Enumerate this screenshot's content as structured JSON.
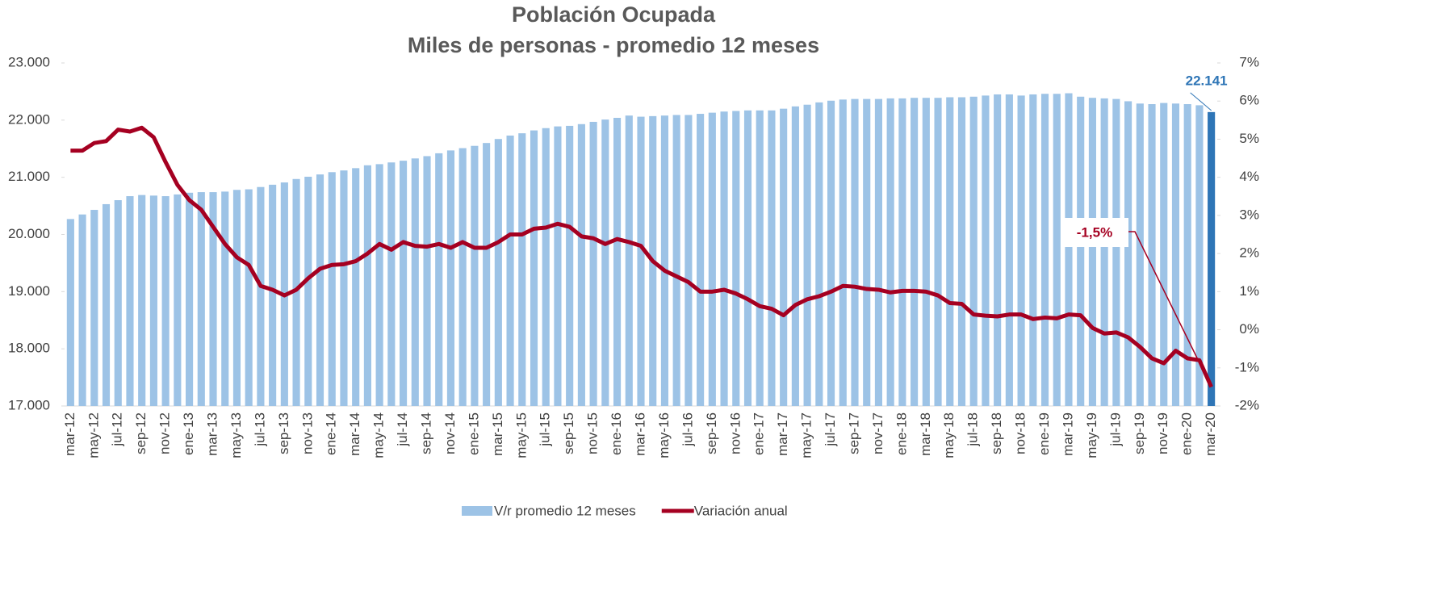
{
  "chart_data": {
    "type": "bar_line",
    "title": "Población Ocupada",
    "subtitle": "Miles de personas - promedio 12 meses",
    "categories": [
      "mar-12",
      null,
      "may-12",
      null,
      "jul-12",
      null,
      "sep-12",
      null,
      "nov-12",
      null,
      "ene-13",
      null,
      "mar-13",
      null,
      "may-13",
      null,
      "jul-13",
      null,
      "sep-13",
      null,
      "nov-13",
      null,
      "ene-14",
      null,
      "mar-14",
      null,
      "may-14",
      null,
      "jul-14",
      null,
      "sep-14",
      null,
      "nov-14",
      null,
      "ene-15",
      null,
      "mar-15",
      null,
      "may-15",
      null,
      "jul-15",
      null,
      "sep-15",
      null,
      "nov-15",
      null,
      "ene-16",
      null,
      "mar-16",
      null,
      "may-16",
      null,
      "jul-16",
      null,
      "sep-16",
      null,
      "nov-16",
      null,
      "ene-17",
      null,
      "mar-17",
      null,
      "may-17",
      null,
      "jul-17",
      null,
      "sep-17",
      null,
      "nov-17",
      null,
      "ene-18",
      null,
      "mar-18",
      null,
      "may-18",
      null,
      "jul-18",
      null,
      "sep-18",
      null,
      "nov-18",
      null,
      "ene-19",
      null,
      "mar-19",
      null,
      "may-19",
      null,
      "jul-19",
      null,
      "sep-19",
      null,
      "nov-19",
      null,
      "ene-20",
      null,
      "mar-20"
    ],
    "series": [
      {
        "name": "V/r promedio 12 meses",
        "type": "bar",
        "color": "#9dc3e6",
        "highlight_color": "#2e75b6",
        "values": [
          20270,
          20350,
          20430,
          20530,
          20600,
          20670,
          20690,
          20680,
          20670,
          20700,
          20730,
          20740,
          20740,
          20750,
          20780,
          20790,
          20830,
          20870,
          20910,
          20970,
          21010,
          21050,
          21090,
          21120,
          21160,
          21210,
          21230,
          21260,
          21290,
          21330,
          21370,
          21420,
          21470,
          21510,
          21550,
          21600,
          21670,
          21730,
          21770,
          21820,
          21860,
          21890,
          21900,
          21930,
          21970,
          22010,
          22040,
          22080,
          22060,
          22070,
          22080,
          22090,
          22090,
          22110,
          22130,
          22150,
          22160,
          22170,
          22170,
          22170,
          22200,
          22240,
          22270,
          22310,
          22340,
          22360,
          22370,
          22370,
          22370,
          22380,
          22380,
          22390,
          22390,
          22390,
          22400,
          22400,
          22410,
          22430,
          22450,
          22450,
          22430,
          22450,
          22460,
          22460,
          22470,
          22410,
          22390,
          22380,
          22370,
          22330,
          22290,
          22280,
          22300,
          22290,
          22280,
          22260,
          22141
        ],
        "value_labels": [
          null,
          null,
          null,
          null,
          null,
          null,
          null,
          null,
          null,
          null,
          null,
          null,
          null,
          null,
          null,
          null,
          null,
          null,
          null,
          null,
          null,
          null,
          null,
          null,
          null,
          null,
          null,
          null,
          null,
          null,
          null,
          null,
          null,
          null,
          null,
          null,
          null,
          null,
          null,
          null,
          null,
          null,
          null,
          null,
          null,
          null,
          null,
          null,
          null,
          null,
          null,
          null,
          null,
          null,
          null,
          null,
          null,
          null,
          null,
          null,
          null,
          null,
          null,
          null,
          null,
          null,
          null,
          null,
          null,
          null,
          null,
          null,
          null,
          null,
          null,
          null,
          null,
          null,
          null,
          null,
          null,
          null,
          null,
          null,
          null,
          null,
          null,
          null,
          null,
          null,
          null,
          null,
          null,
          null,
          null,
          null,
          "22.141"
        ]
      },
      {
        "name": "Variación anual",
        "type": "line",
        "axis": "y2",
        "color": "#a50021",
        "values": [
          4.7,
          4.7,
          4.9,
          4.95,
          5.25,
          5.2,
          5.3,
          5.05,
          4.4,
          3.8,
          3.4,
          3.15,
          2.7,
          2.25,
          1.9,
          1.7,
          1.15,
          1.05,
          0.9,
          1.05,
          1.35,
          1.6,
          1.7,
          1.72,
          1.8,
          2.0,
          2.25,
          2.1,
          2.3,
          2.2,
          2.18,
          2.25,
          2.15,
          2.3,
          2.15,
          2.15,
          2.3,
          2.5,
          2.5,
          2.65,
          2.68,
          2.78,
          2.7,
          2.45,
          2.4,
          2.25,
          2.38,
          2.3,
          2.2,
          1.8,
          1.55,
          1.4,
          1.25,
          1.0,
          1.0,
          1.05,
          0.95,
          0.8,
          0.62,
          0.55,
          0.38,
          0.65,
          0.8,
          0.88,
          1.0,
          1.15,
          1.13,
          1.07,
          1.05,
          0.98,
          1.02,
          1.02,
          1.0,
          0.9,
          0.7,
          0.68,
          0.4,
          0.37,
          0.35,
          0.4,
          0.4,
          0.28,
          0.32,
          0.3,
          0.4,
          0.38,
          0.05,
          -0.1,
          -0.07,
          -0.2,
          -0.45,
          -0.75,
          -0.88,
          -0.55,
          -0.75,
          -0.8,
          -1.5
        ],
        "value_labels": [
          null,
          null,
          null,
          null,
          null,
          null,
          null,
          null,
          null,
          null,
          null,
          null,
          null,
          null,
          null,
          null,
          null,
          null,
          null,
          null,
          null,
          null,
          null,
          null,
          null,
          null,
          null,
          null,
          null,
          null,
          null,
          null,
          null,
          null,
          null,
          null,
          null,
          null,
          null,
          null,
          null,
          null,
          null,
          null,
          null,
          null,
          null,
          null,
          null,
          null,
          null,
          null,
          null,
          null,
          null,
          null,
          null,
          null,
          null,
          null,
          null,
          null,
          null,
          null,
          null,
          null,
          null,
          null,
          null,
          null,
          null,
          null,
          null,
          null,
          null,
          null,
          null,
          null,
          null,
          null,
          null,
          null,
          null,
          null,
          null,
          null,
          null,
          null,
          null,
          null,
          null,
          null,
          null,
          null,
          null,
          null,
          "-1,5%"
        ]
      }
    ],
    "ylim": [
      17000,
      23000
    ],
    "yticks": [
      {
        "value": 17000,
        "label": "17.000"
      },
      {
        "value": 18000,
        "label": "18.000"
      },
      {
        "value": 19000,
        "label": "19.000"
      },
      {
        "value": 20000,
        "label": "20.000"
      },
      {
        "value": 21000,
        "label": "21.000"
      },
      {
        "value": 22000,
        "label": "22.000"
      },
      {
        "value": 23000,
        "label": "23.000"
      }
    ],
    "y2lim": [
      -2,
      7
    ],
    "y2ticks": [
      {
        "value": -2,
        "label": "-2%"
      },
      {
        "value": -1,
        "label": "-1%"
      },
      {
        "value": 0,
        "label": "0%"
      },
      {
        "value": 1,
        "label": "1%"
      },
      {
        "value": 2,
        "label": "2%"
      },
      {
        "value": 3,
        "label": "3%"
      },
      {
        "value": 4,
        "label": "4%"
      },
      {
        "value": 5,
        "label": "5%"
      },
      {
        "value": 6,
        "label": "6%"
      },
      {
        "value": 7,
        "label": "7%"
      }
    ],
    "grid": false,
    "legend": "bottom"
  }
}
